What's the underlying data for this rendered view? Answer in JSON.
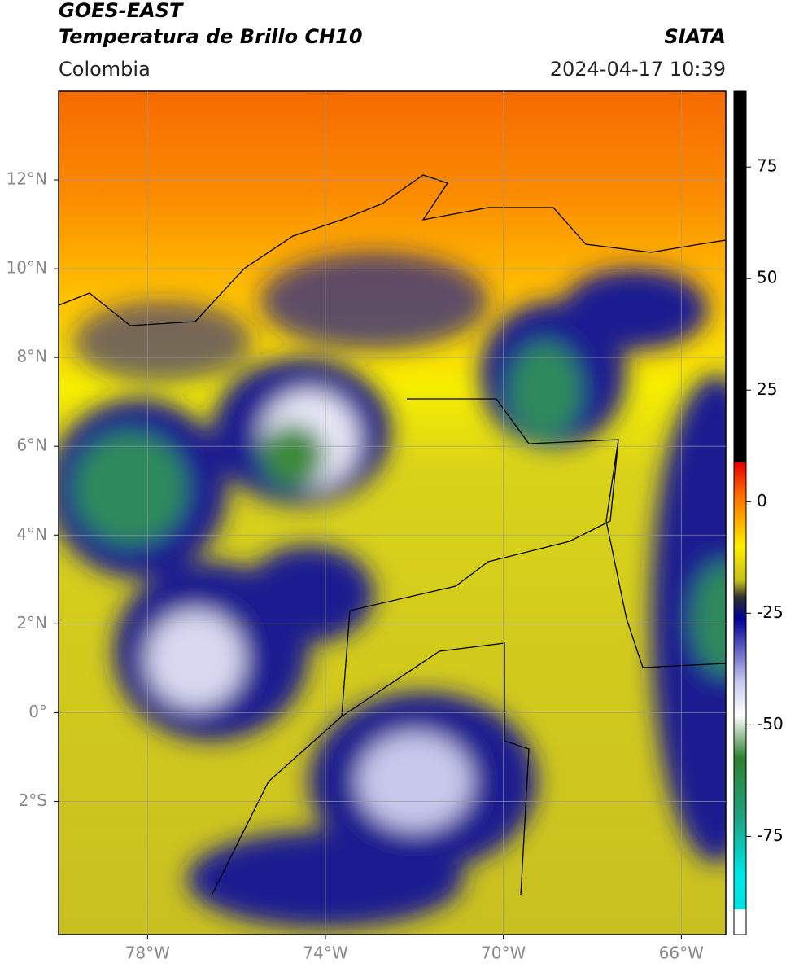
{
  "header": {
    "title": "GOES-EAST",
    "subtitle": "Temperatura de Brillo CH10",
    "region": "Colombia",
    "source": "SIATA",
    "timestamp": "2024-04-17 10:39"
  },
  "map": {
    "xlim": [
      -80,
      -65
    ],
    "ylim": [
      -5,
      14
    ],
    "xticks": [
      {
        "value": -78,
        "label": "78°W"
      },
      {
        "value": -74,
        "label": "74°W"
      },
      {
        "value": -70,
        "label": "70°W"
      },
      {
        "value": -66,
        "label": "66°W"
      }
    ],
    "yticks": [
      {
        "value": 12,
        "label": "12°N"
      },
      {
        "value": 10,
        "label": "10°N"
      },
      {
        "value": 8,
        "label": "8°N"
      },
      {
        "value": 6,
        "label": "6°N"
      },
      {
        "value": 4,
        "label": "4°N"
      },
      {
        "value": 2,
        "label": "2°N"
      },
      {
        "value": 0,
        "label": "0°"
      },
      {
        "value": -2,
        "label": "2°S"
      }
    ],
    "grid": true
  },
  "colorbar": {
    "lim": [
      -97,
      92
    ],
    "ticks": [
      75,
      50,
      25,
      0,
      -25,
      -50,
      -75
    ]
  }
}
